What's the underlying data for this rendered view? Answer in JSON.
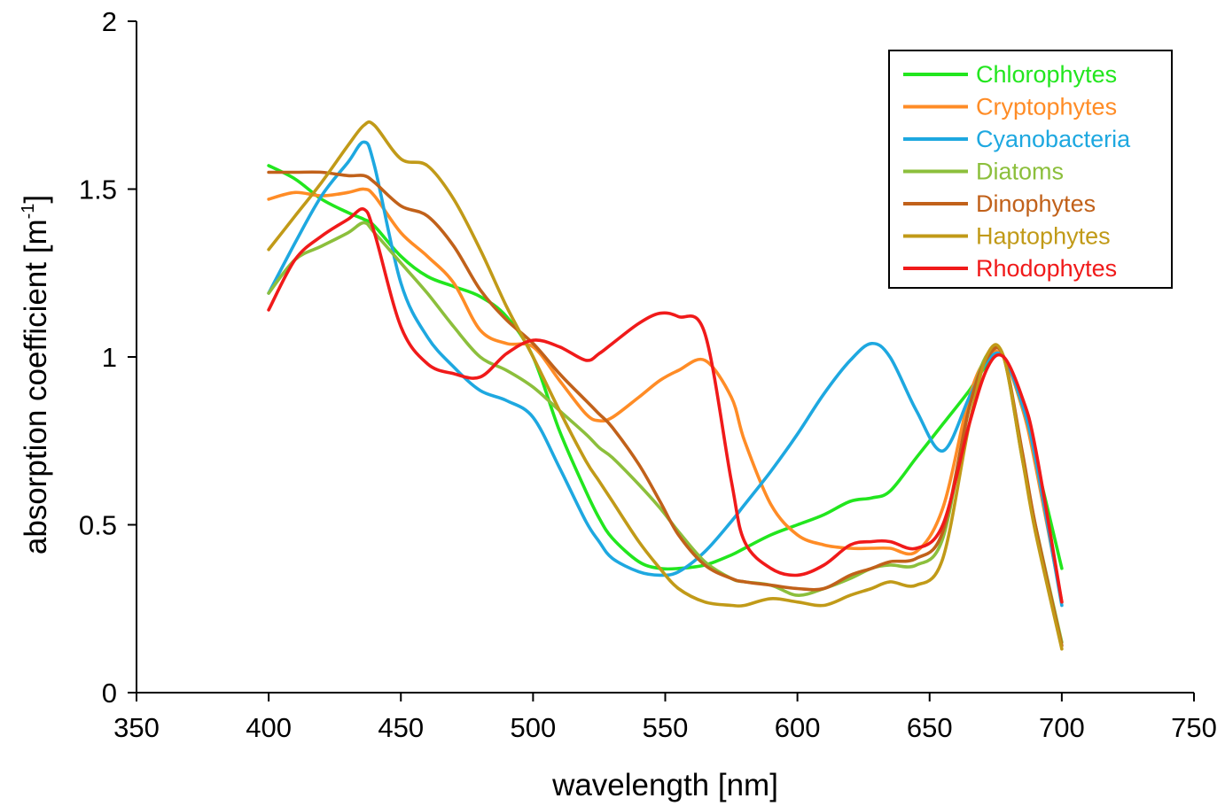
{
  "chart_data": {
    "type": "line",
    "xlabel": "wavelength [nm]",
    "ylabel_main": "absorption coefficient [m",
    "ylabel_sup": "-1",
    "ylabel_end": "]",
    "xlim": [
      350,
      750
    ],
    "ylim": [
      0,
      2
    ],
    "xticks": [
      350,
      400,
      450,
      500,
      550,
      600,
      650,
      700,
      750
    ],
    "yticks": [
      0,
      0.5,
      1,
      1.5,
      2
    ],
    "ytick_labels": [
      "0",
      "0.5",
      "1",
      "1.5",
      "2"
    ],
    "grid": false,
    "legend_position": "top-right",
    "x": [
      400,
      410,
      420,
      430,
      436,
      440,
      450,
      460,
      470,
      480,
      490,
      500,
      510,
      520,
      525,
      530,
      540,
      548,
      555,
      565,
      575,
      580,
      590,
      600,
      610,
      620,
      628,
      635,
      645,
      655,
      665,
      672,
      678,
      685,
      690,
      700
    ],
    "series": [
      {
        "name": "Chlorophytes",
        "color": "#22e61e",
        "values": [
          1.57,
          1.53,
          1.47,
          1.43,
          1.41,
          1.39,
          1.3,
          1.24,
          1.21,
          1.18,
          1.12,
          1.0,
          0.78,
          0.6,
          0.52,
          0.46,
          0.39,
          0.37,
          0.37,
          0.38,
          0.41,
          0.43,
          0.47,
          0.5,
          0.53,
          0.57,
          0.58,
          0.6,
          0.7,
          0.8,
          0.9,
          0.98,
          1.0,
          0.85,
          0.7,
          0.37
        ]
      },
      {
        "name": "Cryptophytes",
        "color": "#ff8c26",
        "values": [
          1.47,
          1.49,
          1.48,
          1.49,
          1.5,
          1.48,
          1.37,
          1.3,
          1.22,
          1.08,
          1.04,
          1.03,
          0.93,
          0.83,
          0.81,
          0.82,
          0.88,
          0.93,
          0.96,
          0.99,
          0.88,
          0.75,
          0.56,
          0.47,
          0.44,
          0.43,
          0.43,
          0.43,
          0.42,
          0.55,
          0.88,
          1.0,
          1.0,
          0.85,
          0.68,
          0.27
        ]
      },
      {
        "name": "Cyanobacteria",
        "color": "#1ea8e0",
        "values": [
          1.19,
          1.34,
          1.48,
          1.58,
          1.64,
          1.57,
          1.22,
          1.06,
          0.97,
          0.9,
          0.87,
          0.82,
          0.67,
          0.51,
          0.45,
          0.4,
          0.36,
          0.35,
          0.36,
          0.42,
          0.51,
          0.56,
          0.66,
          0.77,
          0.89,
          0.99,
          1.04,
          1.0,
          0.84,
          0.72,
          0.88,
          0.99,
          1.0,
          0.86,
          0.7,
          0.26
        ]
      },
      {
        "name": "Diatoms",
        "color": "#8cbf3c",
        "values": [
          1.19,
          1.29,
          1.33,
          1.37,
          1.4,
          1.37,
          1.28,
          1.19,
          1.09,
          1.0,
          0.96,
          0.91,
          0.84,
          0.77,
          0.73,
          0.7,
          0.62,
          0.55,
          0.48,
          0.39,
          0.34,
          0.33,
          0.32,
          0.29,
          0.31,
          0.34,
          0.37,
          0.38,
          0.38,
          0.46,
          0.85,
          1.01,
          1.0,
          0.7,
          0.5,
          0.15
        ]
      },
      {
        "name": "Dinophytes",
        "color": "#c1611a",
        "values": [
          1.55,
          1.55,
          1.55,
          1.54,
          1.54,
          1.52,
          1.45,
          1.42,
          1.33,
          1.2,
          1.11,
          1.04,
          0.95,
          0.87,
          0.83,
          0.79,
          0.68,
          0.57,
          0.47,
          0.38,
          0.34,
          0.33,
          0.32,
          0.31,
          0.31,
          0.35,
          0.37,
          0.39,
          0.4,
          0.48,
          0.85,
          1.0,
          1.0,
          0.72,
          0.5,
          0.14
        ]
      },
      {
        "name": "Haptophytes",
        "color": "#c19a18",
        "values": [
          1.32,
          1.42,
          1.52,
          1.63,
          1.69,
          1.69,
          1.59,
          1.57,
          1.47,
          1.32,
          1.15,
          1.0,
          0.84,
          0.69,
          0.63,
          0.57,
          0.45,
          0.37,
          0.31,
          0.27,
          0.26,
          0.26,
          0.28,
          0.27,
          0.26,
          0.29,
          0.31,
          0.33,
          0.32,
          0.4,
          0.8,
          1.01,
          1.0,
          0.7,
          0.48,
          0.13
        ]
      },
      {
        "name": "Rhodophytes",
        "color": "#f01a1a",
        "values": [
          1.14,
          1.29,
          1.36,
          1.41,
          1.44,
          1.37,
          1.09,
          0.98,
          0.95,
          0.94,
          1.01,
          1.05,
          1.03,
          0.99,
          1.01,
          1.04,
          1.1,
          1.13,
          1.12,
          1.07,
          0.63,
          0.45,
          0.37,
          0.35,
          0.38,
          0.44,
          0.45,
          0.45,
          0.43,
          0.5,
          0.8,
          0.97,
          1.0,
          0.88,
          0.73,
          0.27
        ]
      }
    ]
  }
}
